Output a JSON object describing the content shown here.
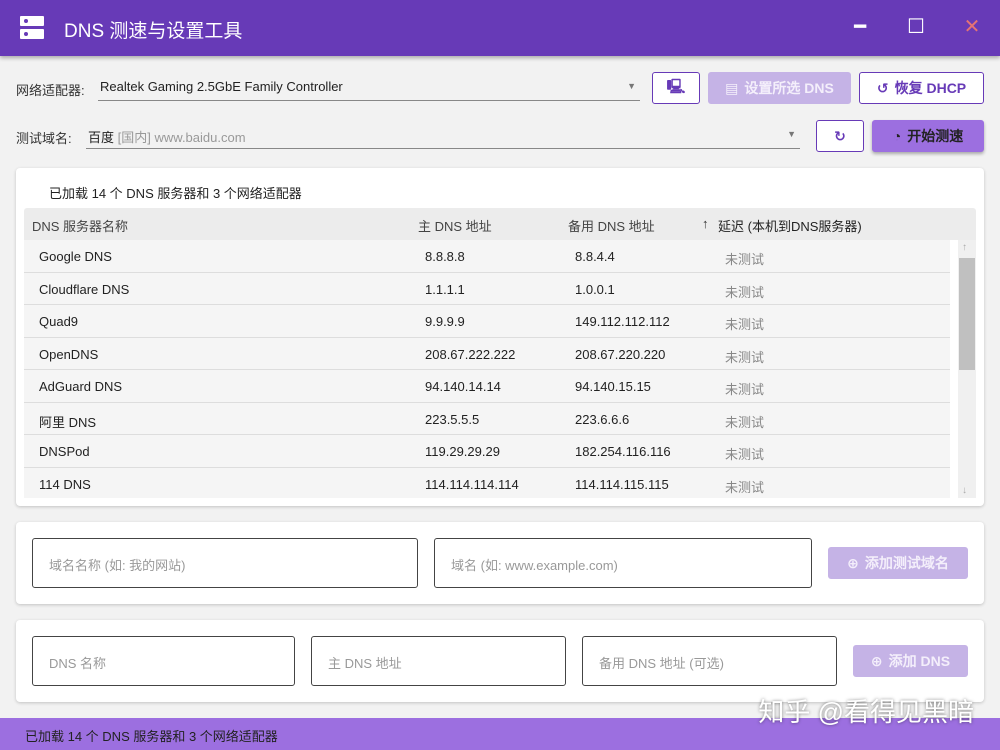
{
  "window": {
    "title": "DNS 测速与设置工具",
    "minimize": "━",
    "maximize": "☐",
    "close": "✕"
  },
  "adapter": {
    "label": "网络适配器:",
    "value": "Realtek Gaming 2.5GbE Family Controller",
    "set_dns": "设置所选 DNS",
    "restore_dhcp": "恢复 DHCP"
  },
  "domain": {
    "label": "测试域名:",
    "name": "百度",
    "region": "[国内]",
    "url": "www.baidu.com",
    "start": "开始测速"
  },
  "table": {
    "summary": "已加载 14 个 DNS 服务器和 3 个网络适配器",
    "headers": [
      "DNS 服务器名称",
      "主 DNS 地址",
      "备用 DNS 地址",
      "延迟 (本机到DNS服务器)"
    ],
    "rows": [
      [
        "Google DNS",
        "8.8.8.8",
        "8.8.4.4",
        "未测试"
      ],
      [
        "Cloudflare DNS",
        "1.1.1.1",
        "1.0.0.1",
        "未测试"
      ],
      [
        "Quad9",
        "9.9.9.9",
        "149.112.112.112",
        "未测试"
      ],
      [
        "OpenDNS",
        "208.67.222.222",
        "208.67.220.220",
        "未测试"
      ],
      [
        "AdGuard DNS",
        "94.140.14.14",
        "94.140.15.15",
        "未测试"
      ],
      [
        "阿里 DNS",
        "223.5.5.5",
        "223.6.6.6",
        "未测试"
      ],
      [
        "DNSPod",
        "119.29.29.29",
        "182.254.116.116",
        "未测试"
      ],
      [
        "114 DNS",
        "114.114.114.114",
        "114.114.115.115",
        "未测试"
      ]
    ]
  },
  "add_domain": {
    "name_placeholder": "域名名称 (如: 我的网站)",
    "url_placeholder": "域名 (如: www.example.com)",
    "button": "添加测试域名"
  },
  "add_dns": {
    "name_placeholder": "DNS 名称",
    "primary_placeholder": "主 DNS 地址",
    "secondary_placeholder": "备用 DNS 地址 (可选)",
    "button": "添加 DNS"
  },
  "status": "已加载 14 个 DNS 服务器和 3 个网络适配器",
  "watermark": "知乎 @看得见黑暗",
  "colors": {
    "primary": "#673ab7",
    "accent": "#9c6fe0"
  }
}
